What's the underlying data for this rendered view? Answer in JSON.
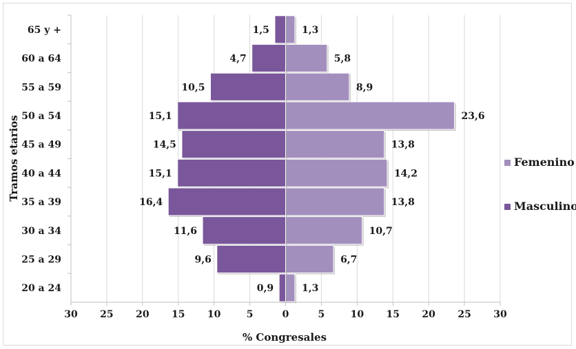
{
  "chart_data": {
    "type": "bar",
    "orientation": "horizontal",
    "subtype": "population-pyramid",
    "categories": [
      "65 y +",
      "60 a 64",
      "55 a 59",
      "50 a 54",
      "45 a 49",
      "40 a 44",
      "35 a 39",
      "30 a 34",
      "25 a 29",
      "20 a 24"
    ],
    "series": [
      {
        "name": "Femenino",
        "side": "right",
        "color": "#a38fbd",
        "values": [
          1.3,
          5.8,
          8.9,
          23.6,
          13.8,
          14.2,
          13.8,
          10.7,
          6.7,
          1.3
        ],
        "labels": [
          "1,3",
          "5,8",
          "8,9",
          "23,6",
          "13,8",
          "14,2",
          "13,8",
          "10,7",
          "6,7",
          "1,3"
        ]
      },
      {
        "name": "Masculino",
        "side": "left",
        "color": "#7a579a",
        "values": [
          1.5,
          4.7,
          10.5,
          15.1,
          14.5,
          15.1,
          16.4,
          11.6,
          9.6,
          0.9
        ],
        "labels": [
          "1,5",
          "4,7",
          "10,5",
          "15,1",
          "14,5",
          "15,1",
          "16,4",
          "11,6",
          "9,6",
          "0,9"
        ]
      }
    ],
    "xlabel": "% Congresales",
    "ylabel": "Tramos etarios",
    "xlim": [
      -30,
      30
    ],
    "xticks": [
      -30,
      -25,
      -20,
      -15,
      -10,
      -5,
      0,
      5,
      10,
      15,
      20,
      25,
      30
    ],
    "xtick_labels": [
      "30",
      "25",
      "20",
      "15",
      "10",
      "5",
      "0",
      "5",
      "10",
      "15",
      "20",
      "25",
      "30"
    ],
    "grid": "vertical",
    "legend": {
      "position": "right",
      "entries": [
        "Femenino",
        "Masculino"
      ]
    }
  }
}
